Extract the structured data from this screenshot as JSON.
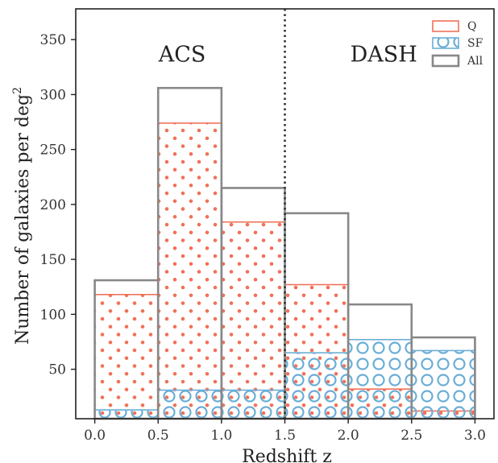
{
  "chart_data": {
    "type": "bar",
    "xlabel": "Redshift z",
    "ylabel": "Number of galaxies per deg",
    "ylabel_sup": "2",
    "xlim": [
      -0.15,
      3.15
    ],
    "ylim": [
      5,
      378
    ],
    "xticks": [
      0.0,
      0.5,
      1.0,
      1.5,
      2.0,
      2.5,
      3.0
    ],
    "xtick_labels": [
      "0.0",
      "0.5",
      "1.0",
      "1.5",
      "2.0",
      "2.5",
      "3.0"
    ],
    "yticks": [
      50,
      100,
      150,
      200,
      250,
      300,
      350
    ],
    "ytick_labels": [
      "50",
      "100",
      "150",
      "200",
      "250",
      "300",
      "350"
    ],
    "bin_edges": [
      0.0,
      0.5,
      1.0,
      1.5,
      2.0,
      2.5,
      3.0
    ],
    "series": [
      {
        "name": "Q",
        "values": [
          118,
          274,
          184,
          127,
          32,
          12
        ],
        "color": "#f07258",
        "hatch": "dots"
      },
      {
        "name": "SF",
        "values": [
          13,
          31,
          31,
          65,
          77,
          67
        ],
        "color": "#6aaed6",
        "hatch": "circles"
      },
      {
        "name": "All",
        "values": [
          131,
          306,
          215,
          192,
          109,
          79
        ],
        "color": "#888888",
        "hatch": "none"
      }
    ],
    "divider_x": 1.5,
    "region_labels": [
      {
        "text": "ACS",
        "x": 0.69,
        "y": 330
      },
      {
        "text": "DASH",
        "x": 2.28,
        "y": 330
      }
    ],
    "legend_placement": "top-right",
    "grid": false
  }
}
